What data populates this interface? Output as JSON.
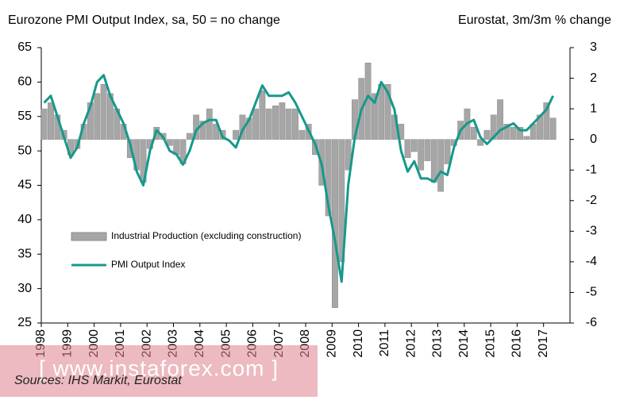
{
  "chart_data": {
    "type": "bar-line",
    "title": "Eurozone PMI Output Index, sa, 50 = no change",
    "y2_title": "Eurostat, 3m/3m % change",
    "source": "Sources: IHS Markit, Eurostat",
    "watermark": "[ www.instaforex.com ]",
    "x": [
      1998,
      1998.25,
      1998.5,
      1998.75,
      1999,
      1999.25,
      1999.5,
      1999.75,
      2000,
      2000.25,
      2000.5,
      2000.75,
      2001,
      2001.25,
      2001.5,
      2001.75,
      2002,
      2002.25,
      2002.5,
      2002.75,
      2003,
      2003.25,
      2003.5,
      2003.75,
      2004,
      2004.25,
      2004.5,
      2004.75,
      2005,
      2005.25,
      2005.5,
      2005.75,
      2006,
      2006.25,
      2006.5,
      2006.75,
      2007,
      2007.25,
      2007.5,
      2007.75,
      2008,
      2008.25,
      2008.5,
      2008.75,
      2009,
      2009.25,
      2009.5,
      2009.75,
      2010,
      2010.25,
      2010.5,
      2010.75,
      2011,
      2011.25,
      2011.5,
      2011.75,
      2012,
      2012.25,
      2012.5,
      2012.75,
      2013,
      2013.25,
      2013.5,
      2013.75,
      2014,
      2014.25,
      2014.5,
      2014.75,
      2015,
      2015.25,
      2015.5,
      2015.75,
      2016,
      2016.25,
      2016.5,
      2016.75,
      2017,
      2017.25
    ],
    "series": [
      {
        "name": "Industrial Production (excluding construction)",
        "color": "#a6a6a6",
        "axis": "y2",
        "kind": "bar",
        "values": [
          1,
          1.2,
          0.8,
          0.3,
          -0.5,
          -0.3,
          0.5,
          1.2,
          1.5,
          1.8,
          1.5,
          1,
          0.5,
          -0.6,
          -1,
          -1.4,
          -0.3,
          0.4,
          0.2,
          -0.2,
          -0.5,
          -0.8,
          0.2,
          0.8,
          0.6,
          1,
          0.5,
          0.3,
          0,
          0.3,
          0.8,
          0.7,
          1,
          1.6,
          1,
          1.1,
          1.2,
          1,
          1,
          0.3,
          0.5,
          -0.5,
          -1.5,
          -2.5,
          -5.5,
          -4,
          -1,
          1.3,
          2,
          2.5,
          1.5,
          1.8,
          1.8,
          0.8,
          0.5,
          -0.6,
          -0.4,
          -1,
          -0.7,
          -1.4,
          -1.7,
          -0.8,
          -0.2,
          0.6,
          1,
          0.4,
          -0.2,
          0.3,
          0.8,
          1.3,
          0.5,
          0.4,
          0.4,
          0.1,
          0.5,
          0.8,
          1.2,
          0.7
        ]
      },
      {
        "name": "PMI Output Index",
        "color": "#15998a",
        "axis": "y",
        "kind": "line",
        "values": [
          57,
          58,
          55,
          52,
          49,
          50.5,
          54,
          56.5,
          60,
          61,
          58,
          56,
          54,
          51,
          47,
          45,
          50,
          53,
          52,
          50,
          49.5,
          48,
          50,
          53,
          54,
          54.5,
          54.5,
          52,
          51.5,
          50.5,
          53,
          54.5,
          57,
          59.5,
          58,
          58,
          58,
          58.5,
          57,
          55,
          53,
          51,
          48,
          42,
          37,
          31,
          45,
          52,
          56,
          58,
          57,
          60,
          58.5,
          56,
          50,
          47,
          48.5,
          46,
          46,
          45.5,
          47,
          46.5,
          50.5,
          53,
          54,
          54.5,
          52,
          51,
          52,
          53,
          53.5,
          54,
          53,
          53,
          54,
          55,
          56,
          58
        ]
      }
    ],
    "xlim": [
      1998,
      2018
    ],
    "xticks": [
      1998,
      1999,
      2000,
      2001,
      2002,
      2003,
      2004,
      2005,
      2006,
      2007,
      2008,
      2009,
      2010,
      2011,
      2012,
      2013,
      2014,
      2015,
      2016,
      2017
    ],
    "ylim": [
      25,
      65
    ],
    "yticks": [
      25,
      30,
      35,
      40,
      45,
      50,
      55,
      60,
      65
    ],
    "y2lim": [
      -6,
      3
    ],
    "y2ticks": [
      -6,
      -5,
      -4,
      -3,
      -2,
      -1,
      0,
      1,
      2,
      3
    ]
  }
}
